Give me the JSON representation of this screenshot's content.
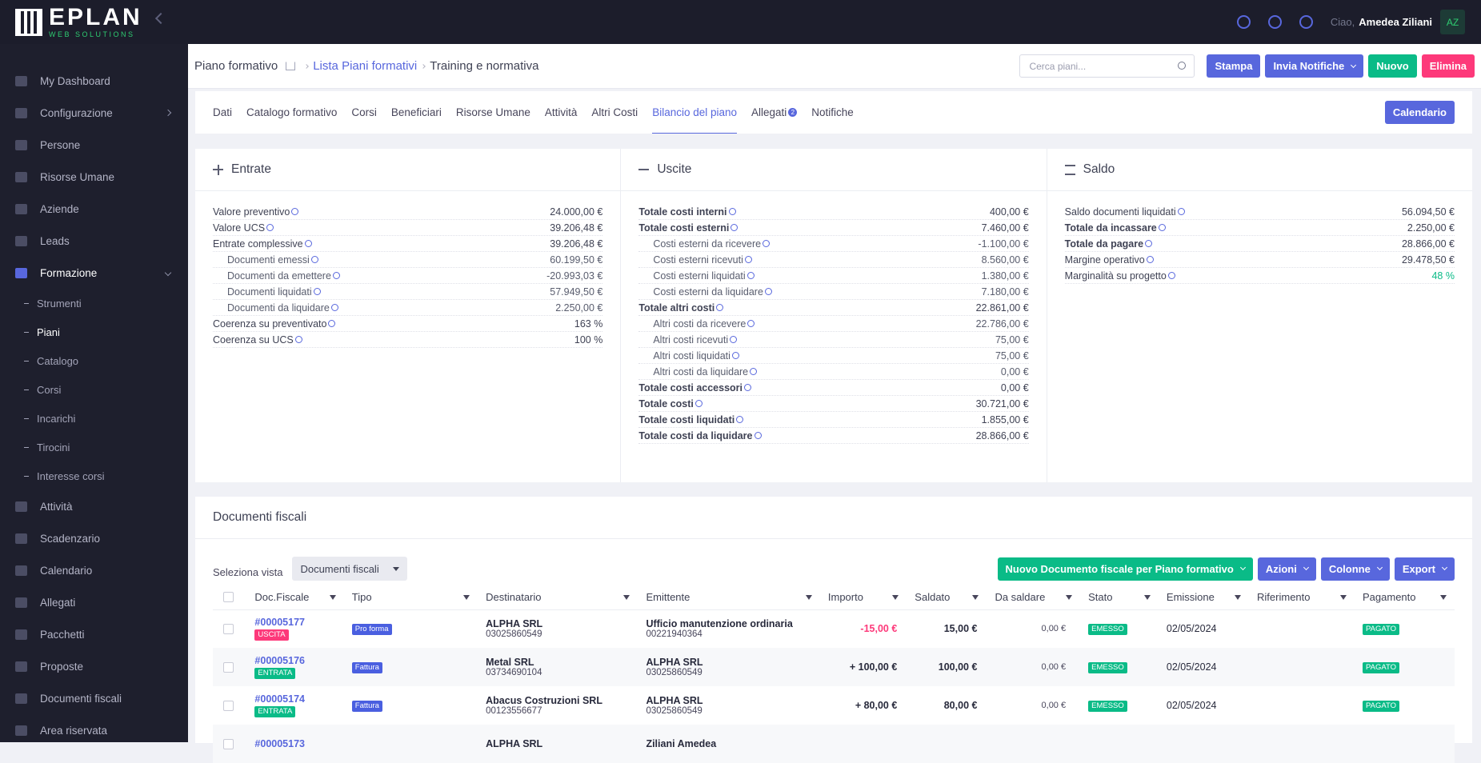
{
  "brand": {
    "name": "EPLAN",
    "tagline": "WEB SOLUTIONS"
  },
  "topbar": {
    "greeting": "Ciao,",
    "user": "Amedea Ziliani",
    "initials": "AZ"
  },
  "sidebar": {
    "items": [
      {
        "label": "My Dashboard"
      },
      {
        "label": "Configurazione",
        "dropdown": true
      },
      {
        "label": "Persone"
      },
      {
        "label": "Risorse Umane"
      },
      {
        "label": "Aziende"
      },
      {
        "label": "Leads"
      },
      {
        "label": "Formazione",
        "active": true,
        "dropdown": true
      }
    ],
    "submenu": [
      {
        "label": "Strumenti"
      },
      {
        "label": "Piani",
        "active": true
      },
      {
        "label": "Catalogo"
      },
      {
        "label": "Corsi"
      },
      {
        "label": "Incarichi"
      },
      {
        "label": "Tirocini"
      },
      {
        "label": "Interesse corsi"
      }
    ],
    "items_after": [
      {
        "label": "Attività"
      },
      {
        "label": "Scadenzario"
      },
      {
        "label": "Calendario"
      },
      {
        "label": "Allegati"
      },
      {
        "label": "Pacchetti"
      },
      {
        "label": "Proposte"
      },
      {
        "label": "Documenti fiscali"
      },
      {
        "label": "Area riservata"
      }
    ]
  },
  "header": {
    "title": "Piano formativo",
    "breadcrumb": [
      "Lista Piani formativi",
      "Training e normativa"
    ],
    "search_placeholder": "Cerca piani...",
    "buttons": [
      {
        "label": "Stampa",
        "color": "#5867dd"
      },
      {
        "label": "Invia Notifiche",
        "color": "#5867dd",
        "dropdown": true
      },
      {
        "label": "Nuovo",
        "color": "#0abb87"
      },
      {
        "label": "Elimina",
        "color": "#fd397a"
      }
    ]
  },
  "tabs": {
    "items": [
      {
        "label": "Dati"
      },
      {
        "label": "Catalogo formativo"
      },
      {
        "label": "Corsi"
      },
      {
        "label": "Beneficiari"
      },
      {
        "label": "Risorse Umane"
      },
      {
        "label": "Attività"
      },
      {
        "label": "Altri Costi"
      },
      {
        "label": "Bilancio del piano",
        "active": true
      },
      {
        "label": "Allegati",
        "badge": "2"
      },
      {
        "label": "Notifiche"
      }
    ],
    "action": {
      "label": "Calendario",
      "color": "#5867dd"
    }
  },
  "panels": [
    {
      "title": "Entrate",
      "rows": [
        {
          "label": "Valore preventivo",
          "value": "24.000,00 €"
        },
        {
          "label": "Valore UCS",
          "value": "39.206,48 €"
        },
        {
          "label": "Entrate complessive",
          "value": "39.206,48 €",
          "children": [
            {
              "label": "Documenti emessi",
              "value": "60.199,50 €"
            },
            {
              "label": "Documenti da emettere",
              "value": "-20.993,03 €"
            },
            {
              "label": "Documenti liquidati",
              "value": "57.949,50 €"
            },
            {
              "label": "Documenti da liquidare",
              "value": "2.250,00 €"
            }
          ]
        },
        {
          "label": "Coerenza su preventivato",
          "value": "163 %"
        },
        {
          "label": "Coerenza su UCS",
          "value": "100 %"
        }
      ]
    },
    {
      "title": "Uscite",
      "rows": [
        {
          "label": "Totale costi interni",
          "value": "400,00 €",
          "bold": true
        },
        {
          "label": "Totale costi esterni",
          "value": "7.460,00 €",
          "bold": true,
          "children": [
            {
              "label": "Costi esterni da ricevere",
              "value": "-1.100,00 €"
            },
            {
              "label": "Costi esterni ricevuti",
              "value": "8.560,00 €"
            },
            {
              "label": "Costi esterni liquidati",
              "value": "1.380,00 €"
            },
            {
              "label": "Costi esterni da liquidare",
              "value": "7.180,00 €"
            }
          ]
        },
        {
          "label": "Totale altri costi",
          "value": "22.861,00 €",
          "bold": true,
          "children": [
            {
              "label": "Altri costi da ricevere",
              "value": "22.786,00 €"
            },
            {
              "label": "Altri costi ricevuti",
              "value": "75,00 €"
            },
            {
              "label": "Altri costi liquidati",
              "value": "75,00 €"
            },
            {
              "label": "Altri costi da liquidare",
              "value": "0,00 €"
            }
          ]
        },
        {
          "label": "Totale costi accessori",
          "value": "0,00 €",
          "bold": true
        },
        {
          "label": "Totale costi",
          "value": "30.721,00 €",
          "bold": true
        },
        {
          "label": "Totale costi liquidati",
          "value": "1.855,00 €",
          "bold": true
        },
        {
          "label": "Totale costi da liquidare",
          "value": "28.866,00 €",
          "bold": true
        }
      ]
    },
    {
      "title": "Saldo",
      "rows": [
        {
          "label": "Saldo documenti liquidati",
          "value": "56.094,50 €"
        },
        {
          "label": "Totale da incassare",
          "value": "2.250,00 €",
          "bold": true
        },
        {
          "label": "Totale da pagare",
          "value": "28.866,00 €",
          "bold": true
        },
        {
          "label": "Margine operativo",
          "value": "29.478,50 €"
        },
        {
          "label": "Marginalità su progetto",
          "value": "48 %",
          "color": "#0abb87"
        }
      ]
    }
  ],
  "documents": {
    "title": "Documenti fiscali",
    "view_label": "Seleziona vista",
    "view_value": "Documenti fiscali",
    "buttons": [
      {
        "label": "Nuovo Documento fiscale per Piano formativo",
        "color": "#0abb87"
      },
      {
        "label": "Azioni",
        "color": "#5867dd"
      },
      {
        "label": "Colonne",
        "color": "#5867dd"
      },
      {
        "label": "Export",
        "color": "#5867dd"
      }
    ],
    "columns": [
      "Doc.Fiscale",
      "Tipo",
      "Destinatario",
      "Emittente",
      "Importo",
      "Saldato",
      "Da saldare",
      "Stato",
      "Emissione",
      "Riferimento",
      "Pagamento"
    ],
    "rows": [
      {
        "doc": "#00005177",
        "direction": {
          "label": "USCITA",
          "color": "#fd397a"
        },
        "tipo": "Pro forma",
        "dest": "ALPHA SRL",
        "dest_code": "03025860549",
        "emit": "Ufficio manutenzione ordinaria",
        "emit_code": "00221940364",
        "importo": {
          "label": "-15,00 €",
          "color": "#fd397a"
        },
        "saldato": "15,00 €",
        "da_saldare": "0,00 €",
        "stato": "EMESSO",
        "emissione": "02/05/2024",
        "pagamento": "PAGATO"
      },
      {
        "doc": "#00005176",
        "direction": {
          "label": "ENTRATA",
          "color": "#0abb87"
        },
        "tipo": "Fattura",
        "dest": "Metal SRL",
        "dest_code": "03734690104",
        "emit": "ALPHA SRL",
        "emit_code": "03025860549",
        "importo": {
          "label": "+ 100,00 €",
          "color": "#282a3c"
        },
        "saldato": "100,00 €",
        "da_saldare": "0,00 €",
        "stato": "EMESSO",
        "emissione": "02/05/2024",
        "pagamento": "PAGATO"
      },
      {
        "doc": "#00005174",
        "direction": {
          "label": "ENTRATA",
          "color": "#0abb87"
        },
        "tipo": "Fattura",
        "dest": "Abacus Costruzioni SRL",
        "dest_code": "00123556677",
        "emit": "ALPHA SRL",
        "emit_code": "03025860549",
        "importo": {
          "label": "+ 80,00 €",
          "color": "#282a3c"
        },
        "saldato": "80,00 €",
        "da_saldare": "0,00 €",
        "stato": "EMESSO",
        "emissione": "02/05/2024",
        "pagamento": "PAGATO"
      },
      {
        "doc": "#00005173",
        "dest": "ALPHA SRL",
        "emit": "Ziliani Amedea"
      }
    ]
  }
}
